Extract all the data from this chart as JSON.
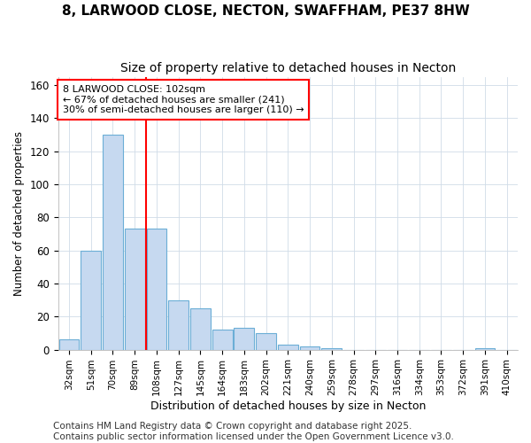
{
  "title1": "8, LARWOOD CLOSE, NECTON, SWAFFHAM, PE37 8HW",
  "title2": "Size of property relative to detached houses in Necton",
  "xlabel": "Distribution of detached houses by size in Necton",
  "ylabel": "Number of detached properties",
  "categories": [
    "32sqm",
    "51sqm",
    "70sqm",
    "89sqm",
    "108sqm",
    "127sqm",
    "145sqm",
    "164sqm",
    "183sqm",
    "202sqm",
    "221sqm",
    "240sqm",
    "259sqm",
    "278sqm",
    "297sqm",
    "316sqm",
    "334sqm",
    "353sqm",
    "372sqm",
    "391sqm",
    "410sqm"
  ],
  "values": [
    6,
    60,
    130,
    73,
    73,
    30,
    25,
    12,
    13,
    10,
    3,
    2,
    1,
    0,
    0,
    0,
    0,
    0,
    0,
    1,
    0
  ],
  "bar_color": "#c6d9f0",
  "bar_edge_color": "#6baed6",
  "red_line_x": 3.5,
  "annotation_text": "8 LARWOOD CLOSE: 102sqm\n← 67% of detached houses are smaller (241)\n30% of semi-detached houses are larger (110) →",
  "annotation_box_color": "white",
  "annotation_box_edge_color": "red",
  "footer": "Contains HM Land Registry data © Crown copyright and database right 2025.\nContains public sector information licensed under the Open Government Licence v3.0.",
  "ylim": [
    0,
    165
  ],
  "background_color": "#ffffff",
  "grid_color": "#d0dce8",
  "yticks": [
    0,
    20,
    40,
    60,
    80,
    100,
    120,
    140,
    160
  ],
  "title_fontsize": 11,
  "subtitle_fontsize": 10,
  "footer_fontsize": 7.5
}
